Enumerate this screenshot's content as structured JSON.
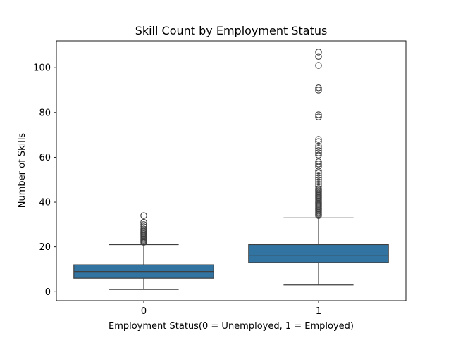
{
  "chart_data": {
    "type": "box",
    "title": "Skill Count by Employment Status",
    "xlabel": "Employment Status(0 = Unemployed, 1 = Employed)",
    "ylabel": "Number of Skills",
    "categories": [
      "0",
      "1"
    ],
    "ylim": [
      -4,
      112
    ],
    "yticks": [
      0,
      20,
      40,
      60,
      80,
      100
    ],
    "grid": false,
    "box_color": "#3274a1",
    "line_color": "#3f3f3f",
    "boxes": [
      {
        "category": "0",
        "whisker_low": 1,
        "q1": 6,
        "median": 9,
        "q3": 12,
        "whisker_high": 21,
        "outliers": [
          22,
          22.5,
          23,
          23.5,
          24,
          24.5,
          25,
          25.5,
          26,
          26.5,
          27,
          27.5,
          28,
          29,
          30,
          31,
          34
        ]
      },
      {
        "category": "1",
        "whisker_low": 3,
        "q1": 13,
        "median": 16,
        "q3": 21,
        "whisker_high": 33,
        "outliers": [
          34,
          34.5,
          35,
          35.5,
          36,
          36.5,
          37,
          37.5,
          38,
          38.5,
          39,
          39.5,
          40,
          40.5,
          41,
          41.5,
          42,
          42.5,
          43,
          43.5,
          44,
          44.5,
          45,
          45.5,
          46,
          47,
          48,
          49,
          50,
          51,
          52,
          53,
          54,
          56,
          57,
          58,
          61,
          62,
          63,
          64,
          65,
          67,
          68,
          78,
          79,
          90,
          91,
          101,
          105,
          107
        ]
      }
    ]
  }
}
